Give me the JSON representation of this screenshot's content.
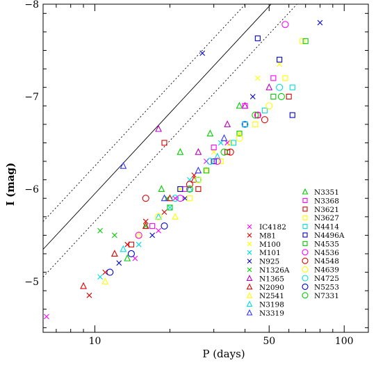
{
  "chart_data": {
    "type": "scatter",
    "title": "",
    "xlabel": "P (days)",
    "ylabel": "I (mag)",
    "x_scale": "log",
    "xlim": [
      6.2,
      125
    ],
    "ylim": [
      -4.45,
      -8.0
    ],
    "y_inverted": true,
    "x_ticks": [
      {
        "value": 10,
        "label": "10"
      },
      {
        "value": 50,
        "label": "50"
      },
      {
        "value": 100,
        "label": "100"
      }
    ],
    "y_ticks": [
      {
        "value": -5,
        "label": "−5"
      },
      {
        "value": -6,
        "label": "−6"
      },
      {
        "value": -7,
        "label": "−7"
      },
      {
        "value": -8,
        "label": "−8"
      }
    ],
    "grid": false,
    "legend_position": "bottom-right",
    "fit": {
      "slope": -2.9,
      "intercept": -3.05,
      "scatter": 0.3,
      "note": "I = intercept + slope*log10(P); dotted lines at +/- scatter"
    },
    "series": [
      {
        "name": "IC4182",
        "marker": "x",
        "color": "#ff00ff",
        "points": [
          [
            6.4,
            -4.62
          ],
          [
            14.5,
            -5.25
          ],
          [
            18.0,
            -5.55
          ],
          [
            21.0,
            -5.9
          ],
          [
            28.0,
            -6.3
          ],
          [
            34.0,
            -6.5
          ]
        ]
      },
      {
        "name": "M81",
        "marker": "x",
        "color": "#dd0000",
        "points": [
          [
            9.5,
            -4.85
          ],
          [
            11.0,
            -5.1
          ],
          [
            13.5,
            -5.4
          ],
          [
            16.0,
            -5.65
          ],
          [
            19.0,
            -5.75
          ],
          [
            25.0,
            -6.15
          ]
        ]
      },
      {
        "name": "M100",
        "marker": "x",
        "color": "#ffff00",
        "points": [
          [
            22.0,
            -6.0
          ],
          [
            30.0,
            -6.4
          ],
          [
            38.0,
            -6.6
          ],
          [
            45.0,
            -7.2
          ],
          [
            55.0,
            -7.35
          ]
        ]
      },
      {
        "name": "M101",
        "marker": "x",
        "color": "#00dddd",
        "points": [
          [
            10.5,
            -5.05
          ],
          [
            15.0,
            -5.4
          ],
          [
            20.0,
            -5.8
          ],
          [
            24.0,
            -6.1
          ],
          [
            32.0,
            -6.5
          ]
        ]
      },
      {
        "name": "N925",
        "marker": "x",
        "color": "#0000cc",
        "points": [
          [
            12.5,
            -5.2
          ],
          [
            17.0,
            -5.5
          ],
          [
            23.0,
            -5.9
          ],
          [
            27.0,
            -7.47
          ],
          [
            43.0,
            -7.0
          ],
          [
            80.0,
            -7.8
          ]
        ]
      },
      {
        "name": "N1326A",
        "marker": "x",
        "color": "#00cc00",
        "points": [
          [
            10.5,
            -5.55
          ],
          [
            12.0,
            -5.5
          ],
          [
            16.0,
            -5.6
          ],
          [
            19.5,
            -5.9
          ]
        ]
      },
      {
        "name": "N1365",
        "marker": "triangle",
        "color": "#bb00bb",
        "points": [
          [
            18.0,
            -6.65
          ],
          [
            26.0,
            -6.4
          ],
          [
            34.0,
            -6.7
          ],
          [
            40.0,
            -6.9
          ],
          [
            50.0,
            -7.1
          ]
        ]
      },
      {
        "name": "N2090",
        "marker": "triangle",
        "color": "#dd0000",
        "points": [
          [
            9.0,
            -4.95
          ],
          [
            12.0,
            -5.3
          ],
          [
            16.0,
            -5.6
          ],
          [
            20.0,
            -5.9
          ],
          [
            25.0,
            -6.1
          ]
        ]
      },
      {
        "name": "N2541",
        "marker": "triangle",
        "color": "#ffff00",
        "points": [
          [
            11.0,
            -5.0
          ],
          [
            15.0,
            -5.5
          ],
          [
            21.0,
            -5.7
          ],
          [
            28.0,
            -6.2
          ],
          [
            35.0,
            -6.5
          ]
        ]
      },
      {
        "name": "N3198",
        "marker": "triangle",
        "color": "#00dddd",
        "points": [
          [
            13.0,
            -5.35
          ],
          [
            18.0,
            -5.7
          ],
          [
            24.0,
            -6.0
          ],
          [
            31.0,
            -6.35
          ]
        ]
      },
      {
        "name": "N3319",
        "marker": "triangle",
        "color": "#3333ff",
        "points": [
          [
            13.0,
            -6.25
          ],
          [
            19.0,
            -5.9
          ],
          [
            26.0,
            -6.2
          ],
          [
            33.0,
            -6.55
          ]
        ]
      },
      {
        "name": "N3351",
        "marker": "triangle",
        "color": "#00cc00",
        "points": [
          [
            13.5,
            -5.25
          ],
          [
            18.5,
            -6.0
          ],
          [
            22.0,
            -6.4
          ],
          [
            29.0,
            -6.6
          ],
          [
            38.0,
            -6.9
          ]
        ]
      },
      {
        "name": "N3368",
        "marker": "square",
        "color": "#ff00ff",
        "points": [
          [
            17.0,
            -5.6
          ],
          [
            23.0,
            -6.0
          ],
          [
            30.0,
            -6.45
          ],
          [
            40.0,
            -6.9
          ],
          [
            52.0,
            -7.2
          ]
        ]
      },
      {
        "name": "N3621",
        "marker": "square",
        "color": "#dd0000",
        "points": [
          [
            14.0,
            -5.4
          ],
          [
            19.0,
            -6.5
          ],
          [
            26.0,
            -6.0
          ],
          [
            34.0,
            -6.4
          ],
          [
            45.0,
            -6.8
          ],
          [
            60.0,
            -7.0
          ]
        ]
      },
      {
        "name": "N3627",
        "marker": "square",
        "color": "#ffff00",
        "points": [
          [
            24.0,
            -5.9
          ],
          [
            32.0,
            -6.3
          ],
          [
            44.0,
            -6.7
          ],
          [
            58.0,
            -7.2
          ],
          [
            68.0,
            -7.6
          ]
        ]
      },
      {
        "name": "N4414",
        "marker": "square",
        "color": "#00dddd",
        "points": [
          [
            26.0,
            -6.1
          ],
          [
            36.0,
            -6.5
          ],
          [
            48.0,
            -6.85
          ],
          [
            62.0,
            -7.1
          ]
        ]
      },
      {
        "name": "N4496A",
        "marker": "square",
        "color": "#0000cc",
        "points": [
          [
            22.0,
            -6.0
          ],
          [
            30.0,
            -6.3
          ],
          [
            40.0,
            -6.7
          ],
          [
            45.0,
            -7.63
          ],
          [
            55.0,
            -7.4
          ],
          [
            62.0,
            -6.8
          ]
        ]
      },
      {
        "name": "N4535",
        "marker": "square",
        "color": "#00cc00",
        "points": [
          [
            20.0,
            -5.8
          ],
          [
            28.0,
            -6.2
          ],
          [
            38.0,
            -6.6
          ],
          [
            52.0,
            -7.0
          ],
          [
            70.0,
            -7.6
          ]
        ]
      },
      {
        "name": "N4536",
        "marker": "circle",
        "color": "#ff00ff",
        "points": [
          [
            15.0,
            -5.5
          ],
          [
            22.0,
            -5.9
          ],
          [
            31.0,
            -6.3
          ],
          [
            45.0,
            -6.8
          ],
          [
            58.0,
            -7.78
          ]
        ]
      },
      {
        "name": "N4548",
        "marker": "circle",
        "color": "#dd0000",
        "points": [
          [
            16.0,
            -5.9
          ],
          [
            24.0,
            -6.05
          ],
          [
            35.0,
            -6.4
          ],
          [
            48.0,
            -6.75
          ]
        ]
      },
      {
        "name": "N4639",
        "marker": "circle",
        "color": "#ffff00",
        "points": [
          [
            18.0,
            -5.7
          ],
          [
            26.0,
            -6.1
          ],
          [
            38.0,
            -6.55
          ],
          [
            50.0,
            -6.9
          ]
        ]
      },
      {
        "name": "N4725",
        "marker": "circle",
        "color": "#00dddd",
        "points": [
          [
            21.0,
            -5.9
          ],
          [
            29.0,
            -6.3
          ],
          [
            40.0,
            -6.7
          ],
          [
            55.0,
            -7.1
          ]
        ]
      },
      {
        "name": "N5253",
        "marker": "circle",
        "color": "#0000cc",
        "points": [
          [
            11.5,
            -5.1
          ],
          [
            14.0,
            -5.3
          ],
          [
            19.0,
            -5.6
          ]
        ]
      },
      {
        "name": "N7331",
        "marker": "circle",
        "color": "#00cc00",
        "points": [
          [
            24.0,
            -6.0
          ],
          [
            33.0,
            -6.4
          ],
          [
            44.0,
            -6.8
          ],
          [
            56.0,
            -7.0
          ]
        ]
      }
    ]
  }
}
